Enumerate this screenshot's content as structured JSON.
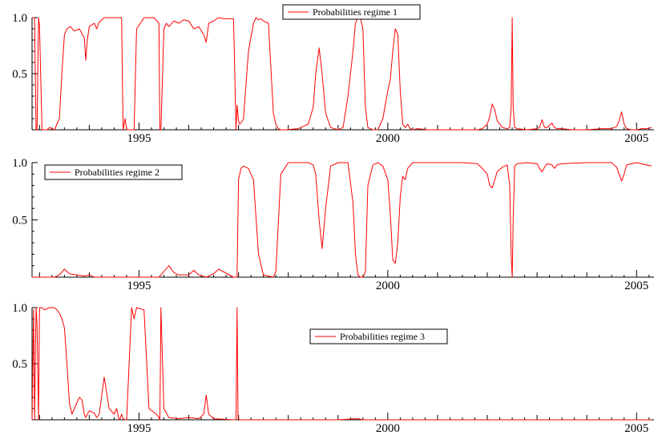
{
  "chart_data": [
    {
      "type": "line",
      "title": "",
      "xlabel": "",
      "ylabel": "",
      "xlim": [
        1992.85,
        2005.35
      ],
      "ylim": [
        0,
        1.0
      ],
      "xticks": [
        1995,
        2000,
        2005
      ],
      "xtick_labels": [
        "1995",
        "2000",
        "2005"
      ],
      "yticks": [
        0.5,
        1.0
      ],
      "ytick_labels": [
        "0.5",
        "1.0"
      ],
      "grid": false,
      "legend": "top-center",
      "series": [
        {
          "name": "Probabilities regime 1",
          "color": "#ff0000",
          "x": [
            1992.85,
            1992.9,
            1992.93,
            1992.95,
            1992.98,
            1993.0,
            1993.05,
            1993.1,
            1993.15,
            1993.2,
            1993.3,
            1993.4,
            1993.45,
            1993.5,
            1993.55,
            1993.62,
            1993.7,
            1993.8,
            1993.9,
            1993.93,
            1993.96,
            1994.0,
            1994.1,
            1994.15,
            1994.2,
            1994.3,
            1994.4,
            1994.5,
            1994.55,
            1994.6,
            1994.62,
            1994.65,
            1994.68,
            1994.72,
            1994.75,
            1994.85,
            1994.9,
            1994.95,
            1995.1,
            1995.3,
            1995.4,
            1995.42,
            1995.44,
            1995.5,
            1995.55,
            1995.6,
            1995.7,
            1995.8,
            1995.9,
            1996.0,
            1996.1,
            1996.2,
            1996.3,
            1996.35,
            1996.4,
            1996.5,
            1996.6,
            1996.7,
            1996.9,
            1996.95,
            1996.97,
            1997.0,
            1997.02,
            1997.05,
            1997.1,
            1997.2,
            1997.3,
            1997.35,
            1997.4,
            1997.45,
            1997.5,
            1997.6,
            1997.7,
            1997.75,
            1997.8,
            1997.85,
            1997.95,
            1998.2,
            1998.4,
            1998.5,
            1998.55,
            1998.62,
            1998.68,
            1998.75,
            1998.85,
            1999.0,
            1999.1,
            1999.2,
            1999.3,
            1999.35,
            1999.4,
            1999.45,
            1999.5,
            1999.55,
            1999.6,
            1999.7,
            1999.8,
            1999.9,
            2000.0,
            2000.05,
            2000.1,
            2000.15,
            2000.2,
            2000.25,
            2000.3,
            2000.35,
            2000.4,
            2000.45,
            2000.5,
            2000.6,
            2000.8,
            2001.0,
            2001.2,
            2001.5,
            2001.8,
            2001.9,
            2002.0,
            2002.05,
            2002.1,
            2002.15,
            2002.2,
            2002.3,
            2002.4,
            2002.45,
            2002.48,
            2002.5,
            2002.52,
            2002.55,
            2002.6,
            2002.8,
            2003.0,
            2003.05,
            2003.1,
            2003.15,
            2003.2,
            2003.3,
            2003.35,
            2003.4,
            2003.5,
            2003.7,
            2004.0,
            2004.3,
            2004.5,
            2004.6,
            2004.65,
            2004.7,
            2004.75,
            2004.8,
            2004.9,
            2005.0,
            2005.1,
            2005.2,
            2005.3
          ],
          "values": [
            1.0,
            1.0,
            0.0,
            0.0,
            1.0,
            0.92,
            0.0,
            0.0,
            0.0,
            0.02,
            0.0,
            0.1,
            0.5,
            0.85,
            0.9,
            0.92,
            0.88,
            0.9,
            0.82,
            0.62,
            0.8,
            0.92,
            0.95,
            0.9,
            0.96,
            1.0,
            1.0,
            1.0,
            1.0,
            1.0,
            1.0,
            1.0,
            0.0,
            0.1,
            0.0,
            0.0,
            0.0,
            0.9,
            1.0,
            1.0,
            0.95,
            0.0,
            0.0,
            0.9,
            0.95,
            0.92,
            0.97,
            0.95,
            0.98,
            0.97,
            0.9,
            0.92,
            0.85,
            0.78,
            0.95,
            0.97,
            1.0,
            0.99,
            0.99,
            0.0,
            0.22,
            0.08,
            0.05,
            0.06,
            0.1,
            0.7,
            0.95,
            1.0,
            0.98,
            0.99,
            0.97,
            0.95,
            0.15,
            0.05,
            0.01,
            0.0,
            0.0,
            0.01,
            0.05,
            0.2,
            0.5,
            0.73,
            0.5,
            0.15,
            0.02,
            0.0,
            0.02,
            0.3,
            0.7,
            0.95,
            1.0,
            1.0,
            0.9,
            0.2,
            0.02,
            0.0,
            0.0,
            0.1,
            0.35,
            0.45,
            0.7,
            0.9,
            0.85,
            0.35,
            0.05,
            0.02,
            0.05,
            0.01,
            0.0,
            0.01,
            0.0,
            0.0,
            0.0,
            0.0,
            0.0,
            0.01,
            0.05,
            0.12,
            0.23,
            0.18,
            0.08,
            0.02,
            0.01,
            0.02,
            0.2,
            1.0,
            0.2,
            0.02,
            0.01,
            0.0,
            0.01,
            0.02,
            0.09,
            0.02,
            0.02,
            0.06,
            0.02,
            0.01,
            0.01,
            0.0,
            0.0,
            0.01,
            0.01,
            0.03,
            0.08,
            0.16,
            0.05,
            0.01,
            0.0,
            0.0,
            0.01,
            0.01,
            0.02
          ]
        }
      ]
    },
    {
      "type": "line",
      "title": "",
      "xlabel": "",
      "ylabel": "",
      "xlim": [
        1992.85,
        2005.35
      ],
      "ylim": [
        0,
        1.0
      ],
      "xticks": [
        1995,
        2000,
        2005
      ],
      "xtick_labels": [
        "1995",
        "2000",
        "2005"
      ],
      "yticks": [
        0.5,
        1.0
      ],
      "ytick_labels": [
        "0.5",
        "1.0"
      ],
      "grid": false,
      "legend": "top-left",
      "series": [
        {
          "name": "Probabilities regime 2",
          "color": "#ff0000",
          "x": [
            1992.85,
            1993.3,
            1993.4,
            1993.5,
            1993.6,
            1993.9,
            1994.0,
            1994.1,
            1994.5,
            1995.0,
            1995.4,
            1995.5,
            1995.6,
            1995.7,
            1995.8,
            1996.0,
            1996.1,
            1996.2,
            1996.35,
            1996.5,
            1996.6,
            1996.9,
            1996.97,
            1997.0,
            1997.05,
            1997.1,
            1997.2,
            1997.3,
            1997.4,
            1997.5,
            1997.6,
            1997.7,
            1997.75,
            1997.85,
            1998.0,
            1998.2,
            1998.4,
            1998.5,
            1998.55,
            1998.62,
            1998.68,
            1998.75,
            1998.85,
            1999.0,
            1999.2,
            1999.3,
            1999.35,
            1999.4,
            1999.45,
            1999.5,
            1999.55,
            1999.6,
            1999.7,
            1999.8,
            1999.9,
            2000.0,
            2000.05,
            2000.1,
            2000.15,
            2000.2,
            2000.25,
            2000.3,
            2000.35,
            2000.4,
            2000.5,
            2000.8,
            2001.0,
            2001.5,
            2001.8,
            2001.9,
            2002.0,
            2002.05,
            2002.1,
            2002.15,
            2002.2,
            2002.3,
            2002.4,
            2002.45,
            2002.48,
            2002.5,
            2002.52,
            2002.55,
            2002.6,
            2002.8,
            2003.0,
            2003.05,
            2003.1,
            2003.15,
            2003.2,
            2003.3,
            2003.35,
            2003.4,
            2003.5,
            2004.0,
            2004.5,
            2004.6,
            2004.65,
            2004.7,
            2004.75,
            2004.8,
            2004.9,
            2005.0,
            2005.2,
            2005.3
          ],
          "values": [
            0.0,
            0.0,
            0.02,
            0.07,
            0.03,
            0.01,
            0.02,
            0.0,
            0.0,
            0.0,
            0.0,
            0.05,
            0.1,
            0.04,
            0.02,
            0.02,
            0.06,
            0.02,
            0.0,
            0.03,
            0.07,
            0.0,
            0.0,
            0.85,
            0.95,
            0.97,
            0.95,
            0.85,
            0.2,
            0.02,
            0.01,
            0.0,
            0.05,
            0.9,
            1.0,
            1.0,
            1.0,
            0.98,
            0.9,
            0.5,
            0.25,
            0.6,
            0.97,
            1.0,
            1.0,
            0.65,
            0.2,
            0.02,
            0.0,
            0.0,
            0.05,
            0.8,
            0.98,
            1.0,
            0.97,
            0.85,
            0.55,
            0.15,
            0.12,
            0.3,
            0.7,
            0.88,
            0.85,
            0.95,
            1.0,
            1.0,
            1.0,
            1.0,
            0.99,
            0.95,
            0.9,
            0.8,
            0.78,
            0.85,
            0.92,
            0.96,
            0.98,
            0.8,
            0.2,
            0.0,
            0.5,
            0.97,
            0.99,
            1.0,
            0.99,
            0.95,
            0.92,
            0.96,
            0.99,
            0.98,
            0.95,
            0.98,
            0.99,
            1.0,
            1.0,
            0.96,
            0.9,
            0.84,
            0.9,
            0.98,
            0.99,
            1.0,
            0.98,
            0.97
          ]
        }
      ]
    },
    {
      "type": "line",
      "title": "",
      "xlabel": "",
      "ylabel": "",
      "xlim": [
        1992.85,
        2005.35
      ],
      "ylim": [
        0,
        1.0
      ],
      "xticks": [
        1995,
        2000,
        2005
      ],
      "xtick_labels": [
        "1995",
        "2000",
        "2005"
      ],
      "yticks": [
        0.5,
        1.0
      ],
      "ytick_labels": [
        "0.5",
        "1.0"
      ],
      "grid": false,
      "legend": "center",
      "series": [
        {
          "name": "Probabilities regime 3",
          "color": "#ff0000",
          "x": [
            1992.85,
            1992.88,
            1992.9,
            1992.93,
            1992.95,
            1992.98,
            1993.0,
            1993.05,
            1993.1,
            1993.2,
            1993.3,
            1993.35,
            1993.4,
            1993.45,
            1993.5,
            1993.55,
            1993.6,
            1993.65,
            1993.7,
            1993.8,
            1993.85,
            1993.9,
            1993.93,
            1993.96,
            1994.0,
            1994.1,
            1994.15,
            1994.2,
            1994.3,
            1994.4,
            1994.5,
            1994.55,
            1994.6,
            1994.62,
            1994.65,
            1994.68,
            1994.72,
            1994.75,
            1994.85,
            1994.9,
            1994.95,
            1995.1,
            1995.2,
            1995.35,
            1995.4,
            1995.42,
            1995.44,
            1995.5,
            1995.6,
            1995.8,
            1996.0,
            1996.2,
            1996.3,
            1996.35,
            1996.4,
            1996.5,
            1996.9,
            1996.95,
            1996.97,
            1996.99,
            1997.02,
            1997.1,
            1998.0,
            1999.0,
            1999.4,
            1999.5,
            2000.0,
            2001.0,
            2002.0,
            2003.0,
            2004.0,
            2005.0,
            2005.3
          ],
          "values": [
            0.0,
            0.98,
            0.0,
            1.0,
            0.85,
            0.0,
            1.0,
            1.0,
            0.98,
            1.0,
            1.0,
            0.98,
            0.95,
            0.9,
            0.82,
            0.5,
            0.15,
            0.05,
            0.1,
            0.2,
            0.18,
            0.05,
            0.02,
            0.05,
            0.08,
            0.06,
            0.02,
            0.05,
            0.38,
            0.1,
            0.05,
            0.1,
            0.0,
            0.01,
            0.05,
            0.01,
            0.0,
            0.0,
            1.0,
            0.9,
            1.0,
            0.98,
            0.1,
            0.05,
            0.02,
            0.0,
            1.0,
            0.1,
            0.02,
            0.01,
            0.02,
            0.01,
            0.05,
            0.22,
            0.05,
            0.01,
            0.0,
            0.0,
            1.0,
            0.02,
            0.0,
            0.0,
            0.0,
            0.0,
            0.01,
            0.0,
            0.0,
            0.0,
            0.0,
            0.0,
            0.0,
            0.0,
            0.0
          ]
        }
      ]
    }
  ]
}
